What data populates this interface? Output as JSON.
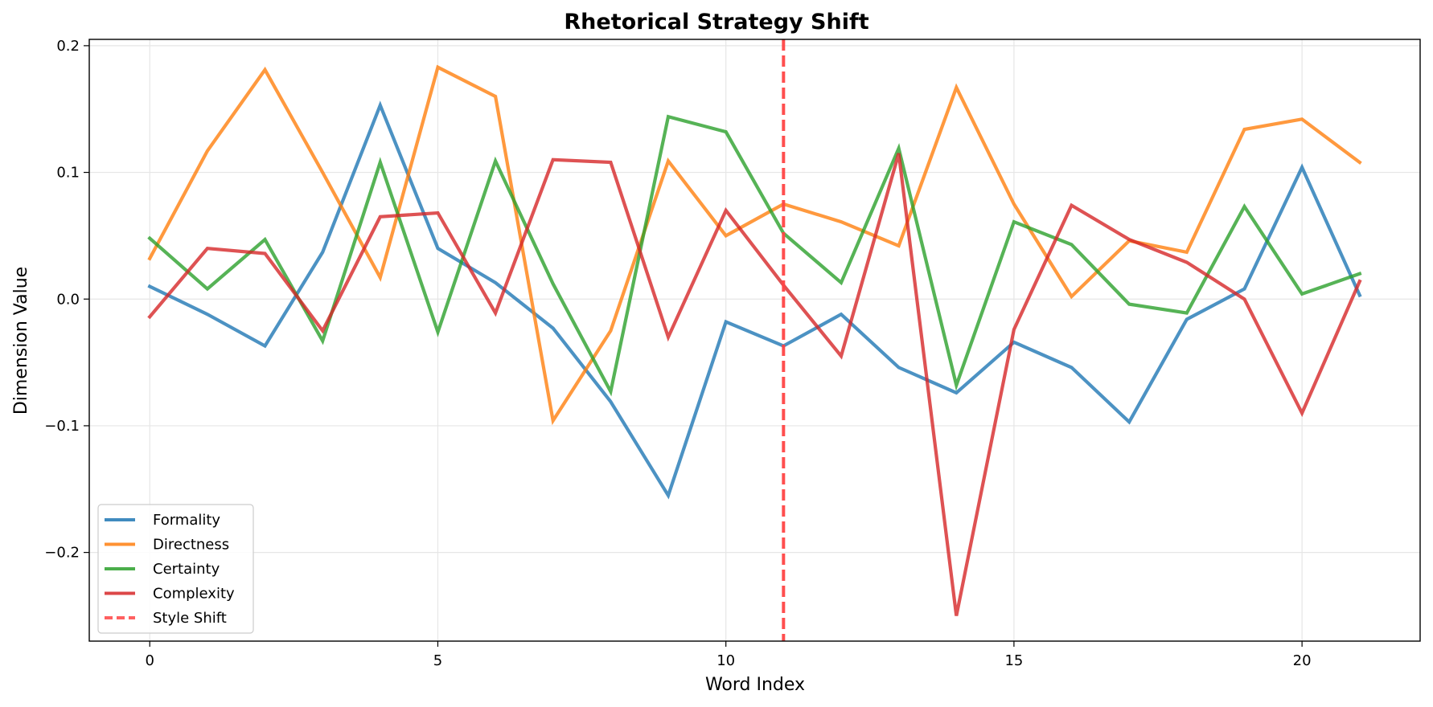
{
  "chart_data": {
    "type": "line",
    "title": "Rhetorical Strategy Shift",
    "xlabel": "Word Index",
    "ylabel": "Dimension Value",
    "xlim": [
      -1.05,
      22.05
    ],
    "ylim": [
      -0.27,
      0.205
    ],
    "x_ticks": [
      0,
      5,
      10,
      15,
      20
    ],
    "y_ticks": [
      0.2,
      0.1,
      0.0,
      -0.1,
      -0.2
    ],
    "y_tick_labels": [
      "0.2",
      "0.1",
      "0.0",
      "−0.1",
      "−0.2"
    ],
    "grid": true,
    "legend_position": "lower-left",
    "x": [
      0,
      1,
      2,
      3,
      4,
      5,
      6,
      7,
      8,
      9,
      10,
      11,
      12,
      13,
      14,
      15,
      16,
      17,
      18,
      19,
      20,
      21
    ],
    "series": [
      {
        "name": "Formality",
        "color": "#1f77b4",
        "values": [
          0.01,
          -0.012,
          -0.037,
          0.037,
          0.153,
          0.04,
          0.013,
          -0.023,
          -0.081,
          -0.155,
          -0.018,
          -0.037,
          -0.012,
          -0.054,
          -0.074,
          -0.034,
          -0.054,
          -0.097,
          -0.016,
          0.008,
          0.104,
          0.003
        ]
      },
      {
        "name": "Directness",
        "color": "#ff7f0e",
        "values": [
          0.032,
          0.117,
          0.181,
          0.1,
          0.017,
          0.183,
          0.16,
          -0.096,
          -0.025,
          0.109,
          0.05,
          0.075,
          0.061,
          0.042,
          0.167,
          0.075,
          0.002,
          0.046,
          0.037,
          0.134,
          0.142,
          0.108
        ]
      },
      {
        "name": "Certainty",
        "color": "#2ca02c",
        "values": [
          0.048,
          0.008,
          0.047,
          -0.033,
          0.108,
          -0.026,
          0.109,
          0.012,
          -0.073,
          0.144,
          0.132,
          0.052,
          0.013,
          0.119,
          -0.068,
          0.061,
          0.043,
          -0.004,
          -0.011,
          0.073,
          0.004,
          0.02
        ]
      },
      {
        "name": "Complexity",
        "color": "#d62728",
        "values": [
          -0.014,
          0.04,
          0.036,
          -0.025,
          0.065,
          0.068,
          -0.011,
          0.11,
          0.108,
          -0.03,
          0.07,
          0.011,
          -0.045,
          0.115,
          -0.25,
          -0.024,
          0.074,
          0.047,
          0.029,
          0.0,
          -0.09,
          0.014
        ]
      }
    ],
    "vline": {
      "name": "Style Shift",
      "x": 11,
      "color": "#ff4444",
      "style": "dashed"
    }
  }
}
